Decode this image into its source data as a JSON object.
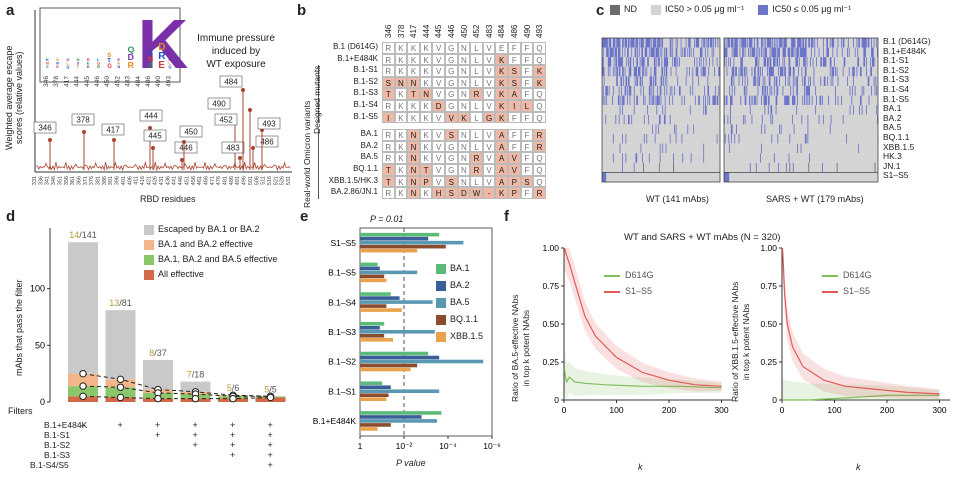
{
  "panel_letters": {
    "a": "a",
    "b": "b",
    "c": "c",
    "d": "d",
    "e": "e",
    "f": "f"
  },
  "panel_a": {
    "ylabel_line1": "Weighted average escape",
    "ylabel_line2": "scores (relative values)",
    "xlabel": "RBD residues",
    "annotation_line1": "Immune pressure",
    "annotation_line2": "induced by",
    "annotation_line3": "WT exposure",
    "logo_sites": [
      "346",
      "378",
      "417",
      "444",
      "445",
      "446",
      "450",
      "452",
      "483",
      "484",
      "486",
      "490",
      "493"
    ],
    "peak_labels": [
      "346",
      "378",
      "417",
      "444",
      "445",
      "446",
      "450",
      "452",
      "483",
      "484",
      "490",
      "486",
      "493"
    ]
  },
  "panel_b": {
    "sites": [
      "346",
      "378",
      "417",
      "444",
      "445",
      "446",
      "450",
      "452",
      "483",
      "484",
      "486",
      "490",
      "493"
    ],
    "group_designed": "Designed mutants",
    "group_real": "Real-world Omicron variants",
    "rows": [
      {
        "name": "B.1 (D614G)",
        "aa": [
          "R",
          "K",
          "K",
          "K",
          "V",
          "G",
          "N",
          "L",
          "V",
          "E",
          "F",
          "F",
          "Q"
        ],
        "mut": []
      },
      {
        "name": "B.1+E484K",
        "aa": [
          "R",
          "K",
          "K",
          "K",
          "V",
          "G",
          "N",
          "L",
          "V",
          "K",
          "F",
          "F",
          "Q"
        ],
        "mut": [
          9
        ]
      },
      {
        "name": "B.1-S1",
        "aa": [
          "R",
          "K",
          "K",
          "K",
          "V",
          "G",
          "N",
          "L",
          "V",
          "K",
          "S",
          "F",
          "K"
        ],
        "mut": [
          9,
          10,
          12
        ]
      },
      {
        "name": "B.1-S2",
        "aa": [
          "S",
          "N",
          "N",
          "K",
          "V",
          "G",
          "N",
          "L",
          "V",
          "K",
          "S",
          "F",
          "K"
        ],
        "mut": [
          0,
          1,
          2,
          9,
          10,
          12
        ]
      },
      {
        "name": "B.1-S3",
        "aa": [
          "T",
          "K",
          "T",
          "N",
          "V",
          "G",
          "N",
          "R",
          "V",
          "K",
          "A",
          "F",
          "Q"
        ],
        "mut": [
          0,
          2,
          3,
          7,
          9,
          10
        ]
      },
      {
        "name": "B.1-S4",
        "aa": [
          "R",
          "K",
          "K",
          "K",
          "D",
          "G",
          "N",
          "L",
          "V",
          "K",
          "I",
          "L",
          "Q"
        ],
        "mut": [
          4,
          9,
          10,
          11
        ]
      },
      {
        "name": "B.1-S5",
        "aa": [
          "I",
          "K",
          "K",
          "K",
          "V",
          "V",
          "K",
          "L",
          "G",
          "K",
          "F",
          "F",
          "Q"
        ],
        "mut": [
          0,
          5,
          6,
          8,
          9
        ]
      },
      {
        "name": "BA.1",
        "aa": [
          "R",
          "K",
          "N",
          "K",
          "V",
          "S",
          "N",
          "L",
          "V",
          "A",
          "F",
          "F",
          "R"
        ],
        "mut": [
          2,
          5,
          9,
          12
        ]
      },
      {
        "name": "BA.2",
        "aa": [
          "R",
          "K",
          "N",
          "K",
          "V",
          "G",
          "N",
          "L",
          "V",
          "A",
          "F",
          "F",
          "R"
        ],
        "mut": [
          2,
          9,
          12
        ]
      },
      {
        "name": "BA.5",
        "aa": [
          "R",
          "K",
          "N",
          "K",
          "V",
          "G",
          "N",
          "R",
          "V",
          "A",
          "V",
          "F",
          "Q"
        ],
        "mut": [
          2,
          7,
          9,
          10
        ]
      },
      {
        "name": "BQ.1.1",
        "aa": [
          "T",
          "K",
          "N",
          "T",
          "V",
          "G",
          "N",
          "R",
          "V",
          "A",
          "V",
          "F",
          "Q"
        ],
        "mut": [
          0,
          2,
          3,
          7,
          9,
          10
        ]
      },
      {
        "name": "XBB.1.5/HK.3",
        "aa": [
          "T",
          "K",
          "N",
          "P",
          "V",
          "S",
          "N",
          "L",
          "V",
          "A",
          "P",
          "S",
          "Q"
        ],
        "mut": [
          0,
          2,
          3,
          5,
          9,
          10,
          11
        ]
      },
      {
        "name": "BA.2.86/JN.1",
        "aa": [
          "R",
          "K",
          "N",
          "K",
          "H",
          "S",
          "D",
          "W",
          "-",
          "K",
          "P",
          "F",
          "R"
        ],
        "mut": [
          2,
          4,
          5,
          6,
          7,
          8,
          9,
          10,
          12
        ]
      }
    ]
  },
  "panel_c": {
    "legend": [
      "ND",
      "IC50 > 0.05 μg ml⁻¹",
      "IC50 ≤ 0.05 μg ml⁻¹"
    ],
    "rows": [
      "B.1 (D614G)",
      "B.1+E484K",
      "B.1-S1",
      "B.1-S2",
      "B.1-S3",
      "B.1-S4",
      "B.1-S5",
      "BA.1",
      "BA.2",
      "BA.5",
      "BQ.1.1",
      "XBB.1.5",
      "HK.3",
      "JN.1",
      "S1–S5"
    ],
    "xlabel_left": "WT (141 mAbs)",
    "xlabel_right": "SARS + WT (179 mAbs)",
    "colors": {
      "nd": "#6b6b6b",
      "weak": "#d4d4d4",
      "potent": "#6b74c9"
    }
  },
  "chart_data": [
    {
      "id": "panel_d",
      "type": "bar",
      "ylabel": "mAbs that pass the filter",
      "xlabel": "Filters",
      "ylim": [
        0,
        150
      ],
      "yticks": [
        "0",
        "50",
        "100"
      ],
      "bar_totals": [
        141,
        81,
        37,
        18,
        6,
        5
      ],
      "ratio_labels": [
        "14/141",
        "13/81",
        "8/37",
        "7/18",
        "5/6",
        "5/5"
      ],
      "ratio_num": [
        "14",
        "13",
        "8",
        "7",
        "5",
        "5"
      ],
      "ratio_den": [
        "/141",
        "/81",
        "/37",
        "/18",
        "/6",
        "/5"
      ],
      "series": [
        {
          "name": "All effective",
          "values": [
            5,
            4,
            3,
            3,
            3,
            4
          ],
          "color": "#d4694a"
        },
        {
          "name": "BA.1, BA.2 and BA.5 effective",
          "values": [
            9,
            9,
            5,
            4,
            2,
            1
          ],
          "color": "#8cc66b"
        },
        {
          "name": "BA.1 and BA.2 effective",
          "values": [
            11,
            7,
            3,
            2,
            1,
            0
          ],
          "color": "#f3b58a"
        },
        {
          "name": "Escaped by BA.1 or BA.2",
          "values": [
            116,
            61,
            26,
            9,
            0,
            0
          ],
          "color": "#c9c9c9"
        }
      ],
      "dashed_lines": [
        [
          25,
          20,
          11,
          9,
          6,
          5
        ],
        [
          14,
          13,
          8,
          7,
          5,
          5
        ],
        [
          5,
          4,
          3,
          3,
          3,
          4
        ]
      ],
      "filter_rows": [
        "B.1+E484K",
        "B.1-S1",
        "B.1-S2",
        "B.1-S3",
        "B.1-S4/S5"
      ],
      "filter_marks": [
        [
          "–",
          "+",
          "+",
          "+",
          "+",
          "+"
        ],
        [
          "–",
          "–",
          "+",
          "+",
          "+",
          "+"
        ],
        [
          "–",
          "–",
          "–",
          "+",
          "+",
          "+"
        ],
        [
          "–",
          "–",
          "–",
          "–",
          "+",
          "+"
        ],
        [
          "–",
          "–",
          "–",
          "–",
          "–",
          "+"
        ]
      ]
    },
    {
      "id": "panel_e",
      "type": "bar",
      "orientation": "horizontal",
      "xlabel": "P value",
      "threshold_label": "P = 0.01",
      "threshold": 0.01,
      "xlim_log10": [
        0,
        -6
      ],
      "xticks": [
        "1",
        "10⁻²",
        "10⁻⁴",
        "10⁻⁶"
      ],
      "categories": [
        "S1–S5",
        "B.1–S5",
        "B.1–S4",
        "B.1–S3",
        "B.1–S2",
        "B.1–S1",
        "B.1+E484K"
      ],
      "series": [
        {
          "name": "BA.1",
          "color": "#5cba78",
          "neglog10p": [
            3.6,
            0.8,
            1.4,
            1.1,
            3.1,
            1.0,
            3.7
          ]
        },
        {
          "name": "BA.2",
          "color": "#3a5e98",
          "neglog10p": [
            3.1,
            0.9,
            1.8,
            0.9,
            3.6,
            1.4,
            2.8
          ]
        },
        {
          "name": "BA.5",
          "color": "#5a98b2",
          "neglog10p": [
            4.7,
            2.6,
            3.3,
            3.4,
            5.6,
            3.6,
            3.5
          ]
        },
        {
          "name": "BQ.1.1",
          "color": "#8a4b2f",
          "neglog10p": [
            3.9,
            1.1,
            1.2,
            1.1,
            2.6,
            1.3,
            1.4
          ]
        },
        {
          "name": "XBB.1.5",
          "color": "#e8a34c",
          "neglog10p": [
            2.6,
            1.2,
            1.9,
            1.5,
            2.3,
            1.2,
            0.8
          ]
        }
      ]
    },
    {
      "id": "panel_f_left",
      "type": "line",
      "title": "WT and SARS + WT mAbs (N = 320)",
      "ylabel_line1": "Ratio of BA.5-effective NAbs",
      "ylabel_line2": "in top k potent NAbs",
      "xlabel": "k",
      "xlim": [
        0,
        320
      ],
      "ylim": [
        0,
        1.0
      ],
      "xticks": [
        "0",
        "100",
        "200",
        "300"
      ],
      "yticks": [
        "0",
        "0.25",
        "0.50",
        "0.75",
        "1.00"
      ],
      "series": [
        {
          "name": "D614G",
          "color": "#7fbf5c",
          "x": [
            1,
            3,
            5,
            10,
            20,
            40,
            80,
            150,
            220,
            300
          ],
          "y": [
            0.2,
            0.15,
            0.12,
            0.15,
            0.12,
            0.11,
            0.1,
            0.09,
            0.09,
            0.08
          ]
        },
        {
          "name": "S1–S5",
          "color": "#e05a5a",
          "x": [
            1,
            5,
            10,
            20,
            40,
            60,
            100,
            150,
            200,
            250,
            300
          ],
          "y": [
            1.0,
            0.95,
            0.9,
            0.78,
            0.55,
            0.42,
            0.28,
            0.18,
            0.13,
            0.1,
            0.09
          ]
        }
      ]
    },
    {
      "id": "panel_f_right",
      "type": "line",
      "ylabel_line1": "Ratio of XBB.1.5-effective NAbs",
      "ylabel_line2": "in top k potent NAbs",
      "xlabel": "k",
      "xlim": [
        0,
        320
      ],
      "ylim": [
        0,
        1.0
      ],
      "xticks": [
        "0",
        "100",
        "200",
        "300"
      ],
      "yticks": [
        "0",
        "0.25",
        "0.50",
        "0.75",
        "1.00"
      ],
      "series": [
        {
          "name": "D614G",
          "color": "#7fbf5c",
          "x": [
            1,
            10,
            50,
            100,
            150,
            200,
            250,
            300
          ],
          "y": [
            0.0,
            0.0,
            0.0,
            0.01,
            0.02,
            0.03,
            0.03,
            0.03
          ]
        },
        {
          "name": "S1–S5",
          "color": "#e05a5a",
          "x": [
            1,
            3,
            5,
            10,
            20,
            40,
            80,
            120,
            180,
            240,
            300
          ],
          "y": [
            1.0,
            0.85,
            0.7,
            0.5,
            0.35,
            0.22,
            0.13,
            0.09,
            0.07,
            0.05,
            0.04
          ]
        }
      ]
    }
  ]
}
